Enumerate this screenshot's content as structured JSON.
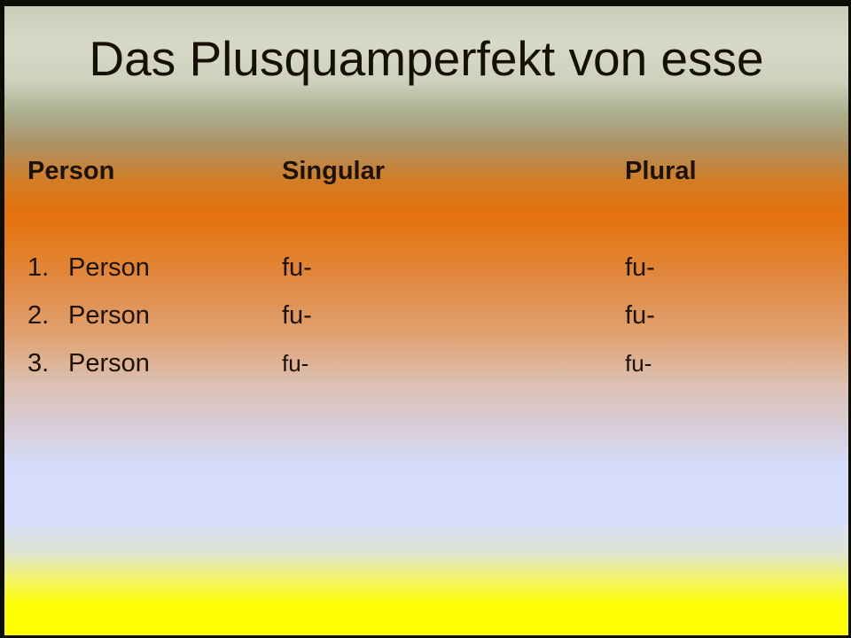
{
  "slide": {
    "title": "Das Plusquamperfekt von esse",
    "table": {
      "headers": [
        "Person",
        "Singular",
        "Plural"
      ],
      "rows": [
        {
          "num": "1.",
          "person": "Person",
          "singular": "fu-",
          "plural": "fu-"
        },
        {
          "num": "2.",
          "person": "Person",
          "singular": "fu-",
          "plural": "fu-"
        },
        {
          "num": "3.",
          "person": "Person",
          "singular": "fu-",
          "plural": "fu-"
        }
      ]
    },
    "colors": {
      "text": "#1c1207",
      "frame_border": "#0d0d06",
      "gradient_top_sage": "#d2d5c2",
      "gradient_orange_peak": "#e4710d",
      "gradient_pink": "#dcc0b2",
      "gradient_periwinkle": "#d5dcfa",
      "gradient_bottom_yellow": "#ffff00"
    }
  }
}
